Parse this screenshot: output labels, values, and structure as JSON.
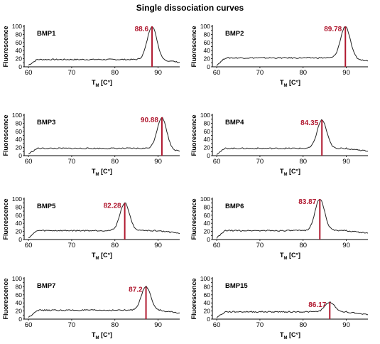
{
  "title": "Single dissociation curves",
  "colors": {
    "curve": "#222222",
    "peak_line": "#b0182f",
    "peak_text": "#b0182f",
    "axis": "#000000"
  },
  "chart_data": [
    {
      "type": "line",
      "label": "BMP1",
      "peak_tm": 88.6,
      "peak_label": "88.6",
      "peak_height": 100,
      "baseline": 18,
      "ylabel": "Fluorescence",
      "xlabel_main": "T",
      "xlabel_sub": "M",
      "xlabel_unit": " [C°]",
      "xlim": [
        59,
        95
      ],
      "ylim": [
        0,
        100
      ],
      "xticks": [
        60,
        70,
        80,
        90
      ],
      "yticks": [
        0,
        10,
        20,
        30,
        40,
        50,
        60,
        70,
        80,
        90,
        100
      ]
    },
    {
      "type": "line",
      "label": "BMP2",
      "peak_tm": 89.78,
      "peak_label": "89.78",
      "peak_height": 100,
      "baseline": 22,
      "ylabel": "Fluorescence",
      "xlabel_main": "T",
      "xlabel_sub": "M",
      "xlabel_unit": " [C°]",
      "xlim": [
        59,
        95
      ],
      "ylim": [
        0,
        100
      ],
      "xticks": [
        60,
        70,
        80,
        90
      ],
      "yticks": [
        0,
        10,
        20,
        30,
        40,
        50,
        60,
        70,
        80,
        90,
        100
      ]
    },
    {
      "type": "line",
      "label": "BMP3",
      "peak_tm": 90.88,
      "peak_label": "90.88",
      "peak_height": 95,
      "baseline": 18,
      "ylabel": "Fluorescence",
      "xlabel_main": "T",
      "xlabel_sub": "M",
      "xlabel_unit": " [C°]",
      "xlim": [
        59,
        95
      ],
      "ylim": [
        0,
        100
      ],
      "xticks": [
        60,
        70,
        80,
        90
      ],
      "yticks": [
        0,
        10,
        20,
        30,
        40,
        50,
        60,
        70,
        80,
        90,
        100
      ]
    },
    {
      "type": "line",
      "label": "BMP4",
      "peak_tm": 84.35,
      "peak_label": "84.35",
      "peak_height": 88,
      "baseline": 18,
      "ylabel": "Fluorescence",
      "xlabel_main": "T",
      "xlabel_sub": "M",
      "xlabel_unit": " [C°]",
      "xlim": [
        59,
        95
      ],
      "ylim": [
        0,
        100
      ],
      "xticks": [
        60,
        70,
        80,
        90
      ],
      "yticks": [
        0,
        10,
        20,
        30,
        40,
        50,
        60,
        70,
        80,
        90,
        100
      ]
    },
    {
      "type": "line",
      "label": "BMP5",
      "peak_tm": 82.28,
      "peak_label": "82.28",
      "peak_height": 90,
      "baseline": 22,
      "ylabel": "Fluorescence",
      "xlabel_main": "T",
      "xlabel_sub": "M",
      "xlabel_unit": " [C°]",
      "xlim": [
        59,
        95
      ],
      "ylim": [
        0,
        100
      ],
      "xticks": [
        60,
        70,
        80,
        90
      ],
      "yticks": [
        0,
        10,
        20,
        30,
        40,
        50,
        60,
        70,
        80,
        90,
        100
      ]
    },
    {
      "type": "line",
      "label": "BMP6",
      "peak_tm": 83.87,
      "peak_label": "83.87",
      "peak_height": 100,
      "baseline": 22,
      "ylabel": "Fluorescence",
      "xlabel_main": "T",
      "xlabel_sub": "M",
      "xlabel_unit": " [C°]",
      "xlim": [
        59,
        95
      ],
      "ylim": [
        0,
        100
      ],
      "xticks": [
        60,
        70,
        80,
        90
      ],
      "yticks": [
        0,
        10,
        20,
        30,
        40,
        50,
        60,
        70,
        80,
        90,
        100
      ]
    },
    {
      "type": "line",
      "label": "BMP7",
      "peak_tm": 87.2,
      "peak_label": "87.2",
      "peak_height": 80,
      "baseline": 22,
      "ylabel": "Fluorescence",
      "xlabel_main": "T",
      "xlabel_sub": "M",
      "xlabel_unit": " [C°]",
      "xlim": [
        59,
        95
      ],
      "ylim": [
        0,
        100
      ],
      "xticks": [
        60,
        70,
        80,
        90
      ],
      "yticks": [
        0,
        10,
        20,
        30,
        40,
        50,
        60,
        70,
        80,
        90,
        100
      ]
    },
    {
      "type": "line",
      "label": "BMP15",
      "peak_tm": 86.17,
      "peak_label": "86.17",
      "peak_height": 42,
      "baseline": 18,
      "ylabel": "Fluorescence",
      "xlabel_main": "T",
      "xlabel_sub": "M",
      "xlabel_unit": " [C°]",
      "xlim": [
        59,
        95
      ],
      "ylim": [
        0,
        100
      ],
      "xticks": [
        60,
        70,
        80,
        90
      ],
      "yticks": [
        0,
        10,
        20,
        30,
        40,
        50,
        60,
        70,
        80,
        90,
        100
      ]
    }
  ]
}
